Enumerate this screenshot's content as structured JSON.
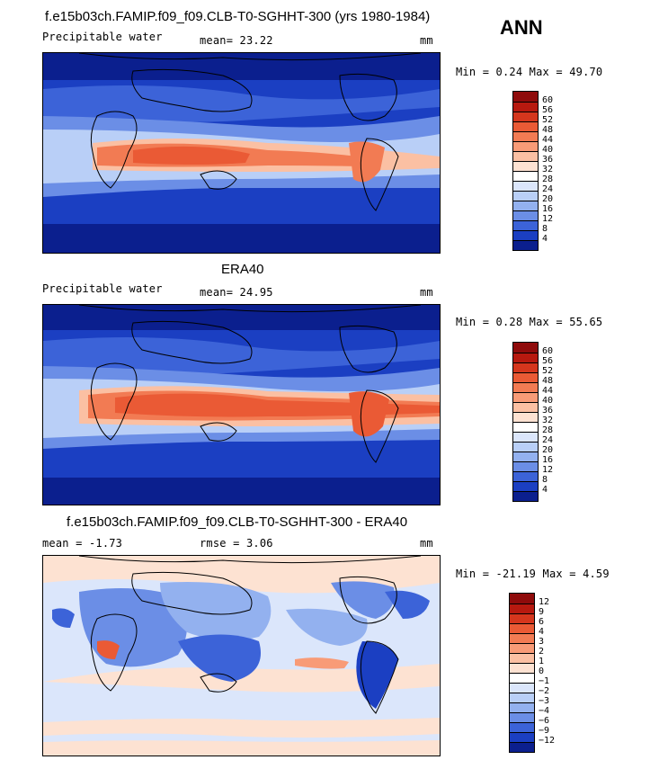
{
  "season": "ANN",
  "panels": [
    {
      "title": "f.e15b03ch.FAMIP.f09_f09.CLB-T0-SGHHT-300 (yrs 1980-1984)",
      "variable": "Precipitable water",
      "stat": "mean=  23.22",
      "units": "mm",
      "minmax": "Min =   0.24 Max =  49.70",
      "colorbar": {
        "labels": [
          "60",
          "56",
          "52",
          "48",
          "44",
          "40",
          "36",
          "32",
          "28",
          "24",
          "20",
          "16",
          "12",
          "8",
          "4"
        ],
        "colors": [
          "#8f0b0b",
          "#b7190f",
          "#d5361d",
          "#ea5a35",
          "#f27b53",
          "#f89b77",
          "#fbc0a3",
          "#fde2d2",
          "#ffffff",
          "#dbe6fb",
          "#b9cff7",
          "#93b1ef",
          "#6b8ee6",
          "#3c63d8",
          "#1b3fc2",
          "#0b1f8e"
        ]
      }
    },
    {
      "title": "ERA40",
      "variable": "Precipitable water",
      "stat": "mean=  24.95",
      "units": "mm",
      "minmax": "Min =   0.28 Max =  55.65",
      "colorbar": {
        "labels": [
          "60",
          "56",
          "52",
          "48",
          "44",
          "40",
          "36",
          "32",
          "28",
          "24",
          "20",
          "16",
          "12",
          "8",
          "4"
        ],
        "colors": [
          "#8f0b0b",
          "#b7190f",
          "#d5361d",
          "#ea5a35",
          "#f27b53",
          "#f89b77",
          "#fbc0a3",
          "#fde2d2",
          "#ffffff",
          "#dbe6fb",
          "#b9cff7",
          "#93b1ef",
          "#6b8ee6",
          "#3c63d8",
          "#1b3fc2",
          "#0b1f8e"
        ]
      }
    },
    {
      "title": "f.e15b03ch.FAMIP.f09_f09.CLB-T0-SGHHT-300 - ERA40",
      "variable": "mean =   -1.73",
      "stat": "rmse =    3.06",
      "units": "mm",
      "minmax": "Min = -21.19 Max =   4.59",
      "colorbar": {
        "labels": [
          "12",
          "9",
          "6",
          "4",
          "3",
          "2",
          "1",
          "0",
          "−1",
          "−2",
          "−3",
          "−4",
          "−6",
          "−9",
          "−12"
        ],
        "colors": [
          "#8f0b0b",
          "#b7190f",
          "#d5361d",
          "#ea5a35",
          "#f27b53",
          "#f89b77",
          "#fbc0a3",
          "#fde2d2",
          "#ffffff",
          "#dbe6fb",
          "#b9cff7",
          "#93b1ef",
          "#6b8ee6",
          "#3c63d8",
          "#1b3fc2",
          "#0b1f8e"
        ]
      }
    }
  ],
  "map_colors": {
    "deep": "#0b1f8e",
    "blue": "#1b3fc2",
    "mid": "#3c63d8",
    "light": "#93b1ef",
    "pale": "#dbe6fb",
    "cream": "#fde2d2",
    "salmon": "#f89b77",
    "orange": "#ea5a35",
    "red": "#d5361d"
  }
}
